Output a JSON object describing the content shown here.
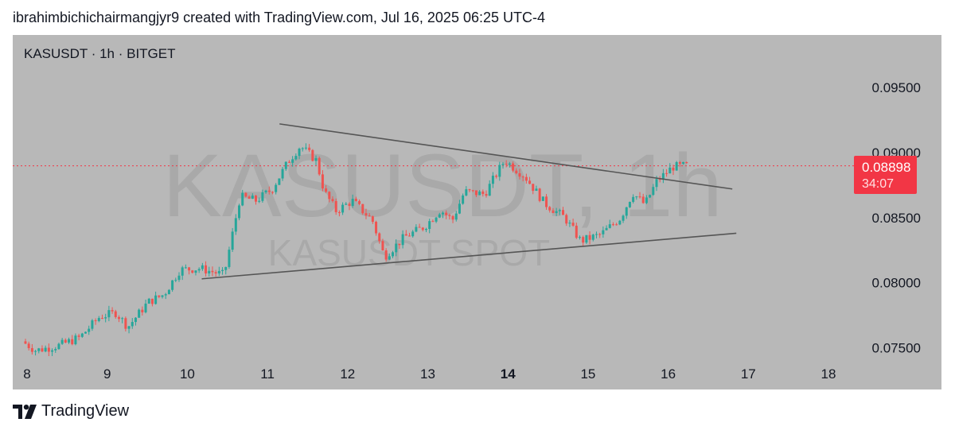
{
  "attribution": "ibrahimbichichairmangjyr9 created with TradingView.com, Jul 16, 2025 06:25 UTC-4",
  "symbol_title": "KASUSDT · 1h · BITGET",
  "watermark": {
    "main": "KASUSDT, 1h",
    "sub": "KASUSDT SPOT"
  },
  "badge": {
    "price": "0.08898",
    "countdown": "34:07"
  },
  "brand": "TradingView",
  "colors": {
    "up": "#26a69a",
    "down": "#ef5350",
    "background": "#b8b8b8",
    "badge": "#f23645",
    "trendline": "#555555"
  },
  "chart_data": {
    "type": "candlestick",
    "symbol": "KASUSDT",
    "interval": "1h",
    "exchange": "BITGET",
    "x_tick_labels": [
      "8",
      "9",
      "10",
      "11",
      "12",
      "13",
      "14",
      "15",
      "16",
      "17",
      "18"
    ],
    "x_tick_bold": [
      "14"
    ],
    "y_tick_labels": [
      "0.09500",
      "0.09000",
      "0.08500",
      "0.08000",
      "0.07500"
    ],
    "y_ticks": [
      0.095,
      0.09,
      0.085,
      0.08,
      0.075
    ],
    "ylim": [
      0.0734,
      0.0976
    ],
    "xlim_days": [
      7.98,
      18.1
    ],
    "last_price": 0.08898,
    "price_anchors": [
      [
        7.98,
        0.0755
      ],
      [
        8.15,
        0.0748
      ],
      [
        8.45,
        0.0752
      ],
      [
        8.7,
        0.0758
      ],
      [
        8.95,
        0.0774
      ],
      [
        9.15,
        0.0777
      ],
      [
        9.3,
        0.0766
      ],
      [
        9.55,
        0.0785
      ],
      [
        9.75,
        0.0791
      ],
      [
        9.95,
        0.081
      ],
      [
        10.2,
        0.0811
      ],
      [
        10.5,
        0.0806
      ],
      [
        10.7,
        0.0866
      ],
      [
        10.9,
        0.0863
      ],
      [
        11.1,
        0.0872
      ],
      [
        11.3,
        0.0893
      ],
      [
        11.45,
        0.0905
      ],
      [
        11.65,
        0.0894
      ],
      [
        11.75,
        0.087
      ],
      [
        11.9,
        0.0855
      ],
      [
        12.1,
        0.0863
      ],
      [
        12.35,
        0.0848
      ],
      [
        12.5,
        0.082
      ],
      [
        12.75,
        0.0835
      ],
      [
        13.0,
        0.0843
      ],
      [
        13.2,
        0.0856
      ],
      [
        13.35,
        0.0848
      ],
      [
        13.5,
        0.087
      ],
      [
        13.75,
        0.0868
      ],
      [
        14.0,
        0.0894
      ],
      [
        14.25,
        0.0882
      ],
      [
        14.5,
        0.0861
      ],
      [
        14.75,
        0.085
      ],
      [
        14.95,
        0.0832
      ],
      [
        15.2,
        0.0837
      ],
      [
        15.45,
        0.085
      ],
      [
        15.6,
        0.0869
      ],
      [
        15.75,
        0.086
      ],
      [
        15.9,
        0.0878
      ],
      [
        16.1,
        0.0889
      ],
      [
        16.25,
        0.08898
      ]
    ],
    "trendlines": [
      {
        "name": "upper",
        "points": [
          [
            11.15,
            0.0922
          ],
          [
            16.8,
            0.0872
          ]
        ]
      },
      {
        "name": "lower",
        "points": [
          [
            10.18,
            0.0803
          ],
          [
            16.85,
            0.0838
          ]
        ]
      }
    ],
    "last_price_line": {
      "value": 0.08898,
      "style": "dotted",
      "color": "#f23645"
    }
  }
}
